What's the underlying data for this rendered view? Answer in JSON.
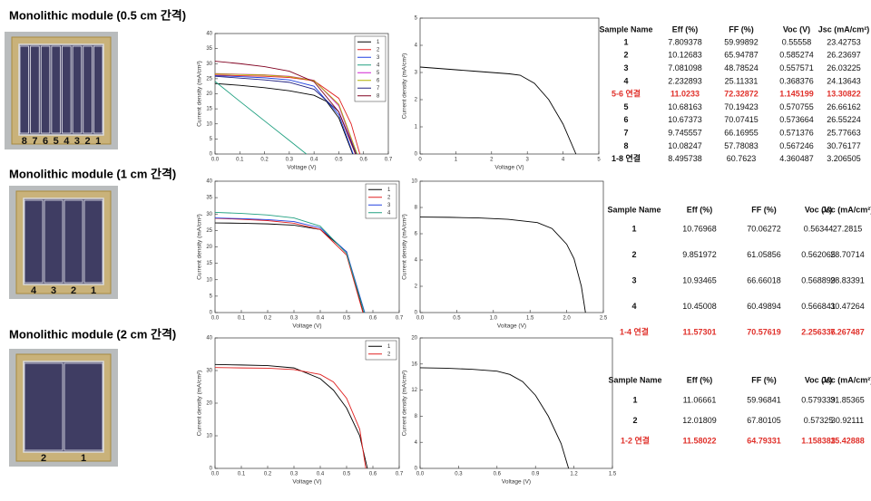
{
  "sections": [
    {
      "title": "Monolithic module (0.5 cm 간격)",
      "photo_labels": [
        "8",
        "7",
        "6",
        "5",
        "4",
        "3",
        "2",
        "1"
      ],
      "table": {
        "header": [
          "Sample Name",
          "Eff (%)",
          "FF (%)",
          "Voc (V)",
          "Jsc (mA/cm²)"
        ],
        "highlight_rows": [
          4
        ],
        "highlight_color": "#e0302a",
        "rows": [
          [
            "1",
            "7.809378",
            "59.99892",
            "0.55558",
            "23.42753"
          ],
          [
            "2",
            "10.12683",
            "65.94787",
            "0.585274",
            "26.23697"
          ],
          [
            "3",
            "7.081098",
            "48.78524",
            "0.557571",
            "26.03225"
          ],
          [
            "4",
            "2.232893",
            "25.11331",
            "0.368376",
            "24.13643"
          ],
          [
            "5-6 연결",
            "11.0233",
            "72.32872",
            "1.145199",
            "13.30822"
          ],
          [
            "5",
            "10.68163",
            "70.19423",
            "0.570755",
            "26.66162"
          ],
          [
            "6",
            "10.67373",
            "70.07415",
            "0.573664",
            "26.55224"
          ],
          [
            "7",
            "9.745557",
            "66.16955",
            "0.571376",
            "25.77663"
          ],
          [
            "8",
            "10.08247",
            "57.78083",
            "0.567246",
            "30.76177"
          ],
          [
            "1-8 연결",
            "8.495738",
            "60.7623",
            "4.360487",
            "3.206505"
          ]
        ]
      }
    },
    {
      "title": "Monolithic module (1 cm 간격)",
      "photo_labels": [
        "4",
        "3",
        "2",
        "1"
      ],
      "table": {
        "header": [
          "Sample Name",
          "Eff (%)",
          "FF (%)",
          "Voc (V)",
          "Jsc (mA/cm²)"
        ],
        "highlight_rows": [
          4
        ],
        "highlight_color": "#e0302a",
        "rows": [
          [
            "1",
            "10.76968",
            "70.06272",
            "0.56344",
            "27.2815"
          ],
          [
            "2",
            "9.851972",
            "61.05856",
            "0.562065",
            "28.70714"
          ],
          [
            "3",
            "10.93465",
            "66.66018",
            "0.568899",
            "28.83391"
          ],
          [
            "4",
            "10.45008",
            "60.49894",
            "0.566841",
            "30.47264"
          ],
          [
            "1-4 연결",
            "11.57301",
            "70.57619",
            "2.256336",
            "7.267487"
          ]
        ]
      }
    },
    {
      "title": "Monolithic module (2 cm 간격)",
      "photo_labels": [
        "2",
        "1"
      ],
      "table": {
        "header": [
          "Sample Name",
          "Eff (%)",
          "FF (%)",
          "Voc (V)",
          "Jsc (mA/cm²)"
        ],
        "highlight_rows": [
          2
        ],
        "highlight_color": "#e0302a",
        "rows": [
          [
            "1",
            "11.06661",
            "59.96841",
            "0.579339",
            "31.85365"
          ],
          [
            "2",
            "12.01809",
            "67.80105",
            "0.57325",
            "30.92111"
          ],
          [
            "1-2 연결",
            "11.58022",
            "64.79331",
            "1.158383",
            "15.42888"
          ]
        ]
      }
    }
  ],
  "chart_data": [
    {
      "type": "line",
      "xlabel": "Voltage (V)",
      "ylabel": "Current density (mA/cm²)",
      "xlim": [
        0,
        0.7
      ],
      "ylim": [
        0,
        40
      ],
      "xticks": [
        {
          "value": 0,
          "label": "0.0"
        },
        0.1,
        0.2,
        0.3,
        0.4,
        0.5,
        0.6,
        0.7
      ],
      "yticks": [
        0,
        5,
        10,
        15,
        20,
        25,
        30,
        35,
        40
      ],
      "legend": "upper right",
      "series": [
        {
          "name": "1",
          "color": "#000000",
          "x": [
            0,
            0.1,
            0.2,
            0.3,
            0.4,
            0.45,
            0.5,
            0.556
          ],
          "values": [
            23.4,
            22.8,
            22.0,
            21.0,
            19.5,
            17.5,
            12,
            0
          ]
        },
        {
          "name": "2",
          "color": "#e02020",
          "x": [
            0,
            0.1,
            0.2,
            0.3,
            0.4,
            0.5,
            0.55,
            0.585
          ],
          "values": [
            26.2,
            26.0,
            25.8,
            25.4,
            24.3,
            18.5,
            10,
            0
          ]
        },
        {
          "name": "3",
          "color": "#2040e0",
          "x": [
            0,
            0.1,
            0.2,
            0.3,
            0.4,
            0.5,
            0.558
          ],
          "values": [
            26.0,
            25.7,
            25.3,
            24.6,
            22.5,
            13,
            0
          ]
        },
        {
          "name": "4",
          "color": "#20a080",
          "x": [
            0,
            0.1,
            0.2,
            0.3,
            0.369
          ],
          "values": [
            24.1,
            17.5,
            11,
            4.5,
            0
          ]
        },
        {
          "name": "5",
          "color": "#d020d0",
          "x": [
            0,
            0.1,
            0.2,
            0.3,
            0.4,
            0.5,
            0.571
          ],
          "values": [
            26.7,
            26.5,
            26.3,
            25.8,
            24.5,
            16,
            0
          ]
        },
        {
          "name": "6",
          "color": "#b0b000",
          "x": [
            0,
            0.1,
            0.2,
            0.3,
            0.4,
            0.5,
            0.574
          ],
          "values": [
            26.6,
            26.4,
            26.2,
            25.7,
            24.4,
            16.5,
            0
          ]
        },
        {
          "name": "7",
          "color": "#202080",
          "x": [
            0,
            0.1,
            0.2,
            0.3,
            0.4,
            0.5,
            0.571
          ],
          "values": [
            25.8,
            25.2,
            24.6,
            23.8,
            21.5,
            14,
            0
          ]
        },
        {
          "name": "8",
          "color": "#800020",
          "x": [
            0,
            0.1,
            0.2,
            0.3,
            0.4,
            0.5,
            0.567
          ],
          "values": [
            30.8,
            30.0,
            29.0,
            27.5,
            24,
            14,
            0
          ]
        }
      ]
    },
    {
      "type": "line",
      "xlabel": "Voltage (V)",
      "ylabel": "Current density (mA/cm²)",
      "xlim": [
        0,
        5
      ],
      "ylim": [
        0,
        5
      ],
      "xticks": [
        0,
        1,
        2,
        3,
        4,
        5
      ],
      "yticks": [
        0,
        1,
        2,
        3,
        4,
        5
      ],
      "series": [
        {
          "color": "#000000",
          "x": [
            0,
            0.5,
            1,
            1.5,
            2,
            2.5,
            2.8,
            3.2,
            3.6,
            4.0,
            4.36
          ],
          "values": [
            3.2,
            3.15,
            3.1,
            3.05,
            3.0,
            2.95,
            2.9,
            2.6,
            2.0,
            1.1,
            0
          ]
        }
      ]
    },
    {
      "type": "line",
      "xlabel": "Voltage (V)",
      "ylabel": "Current density (mA/cm²)",
      "xlim": [
        0,
        0.7
      ],
      "ylim": [
        0,
        40
      ],
      "xticks": [
        {
          "value": 0,
          "label": "0.0"
        },
        0.1,
        0.2,
        0.3,
        0.4,
        0.5,
        0.6,
        0.7
      ],
      "yticks": [
        0,
        5,
        10,
        15,
        20,
        25,
        30,
        35,
        40
      ],
      "legend": "upper right",
      "series": [
        {
          "name": "1",
          "color": "#000000",
          "x": [
            0,
            0.1,
            0.2,
            0.3,
            0.4,
            0.5,
            0.563
          ],
          "values": [
            27.3,
            27.2,
            27.0,
            26.6,
            25.3,
            18.5,
            0
          ]
        },
        {
          "name": "2",
          "color": "#e02020",
          "x": [
            0,
            0.1,
            0.2,
            0.3,
            0.4,
            0.5,
            0.562
          ],
          "values": [
            28.7,
            28.4,
            28.0,
            27.2,
            25.3,
            17.5,
            0
          ]
        },
        {
          "name": "3",
          "color": "#2040e0",
          "x": [
            0,
            0.1,
            0.2,
            0.3,
            0.4,
            0.5,
            0.569
          ],
          "values": [
            28.8,
            28.6,
            28.3,
            27.7,
            25.8,
            18.5,
            0
          ]
        },
        {
          "name": "4",
          "color": "#20a080",
          "x": [
            0,
            0.1,
            0.2,
            0.3,
            0.4,
            0.5,
            0.567
          ],
          "values": [
            30.5,
            30.2,
            29.7,
            28.8,
            26.3,
            18,
            0
          ]
        }
      ]
    },
    {
      "type": "line",
      "xlabel": "Voltage (V)",
      "ylabel": "Current density (mA/cm²)",
      "xlim": [
        0,
        2.5
      ],
      "ylim": [
        0,
        10
      ],
      "xticks": [
        {
          "value": 0,
          "label": "0.0"
        },
        0.5,
        {
          "value": 1,
          "label": "1.0"
        },
        1.5,
        {
          "value": 2,
          "label": "2.0"
        },
        2.5
      ],
      "yticks": [
        0,
        2,
        4,
        6,
        8,
        10
      ],
      "series": [
        {
          "color": "#000000",
          "x": [
            0,
            0.4,
            0.8,
            1.2,
            1.6,
            1.8,
            2.0,
            2.1,
            2.2,
            2.256
          ],
          "values": [
            7.27,
            7.25,
            7.2,
            7.1,
            6.85,
            6.4,
            5.2,
            4.1,
            2.0,
            0
          ]
        }
      ]
    },
    {
      "type": "line",
      "xlabel": "Voltage (V)",
      "ylabel": "Current density (mA/cm²)",
      "xlim": [
        0,
        0.7
      ],
      "ylim": [
        0,
        40
      ],
      "xticks": [
        {
          "value": 0,
          "label": "0.0"
        },
        0.1,
        0.2,
        0.3,
        0.4,
        0.5,
        0.6,
        0.7
      ],
      "yticks": [
        0,
        10,
        20,
        30,
        40
      ],
      "legend": "upper right",
      "series": [
        {
          "name": "1",
          "color": "#000000",
          "x": [
            0,
            0.1,
            0.2,
            0.3,
            0.4,
            0.45,
            0.5,
            0.55,
            0.579
          ],
          "values": [
            31.85,
            31.7,
            31.5,
            30.8,
            27.5,
            24,
            18.5,
            10,
            0
          ]
        },
        {
          "name": "2",
          "color": "#e02020",
          "x": [
            0,
            0.1,
            0.2,
            0.3,
            0.4,
            0.45,
            0.5,
            0.55,
            0.573
          ],
          "values": [
            30.92,
            30.8,
            30.7,
            30.3,
            28.8,
            26.5,
            21.5,
            12,
            0
          ]
        }
      ]
    },
    {
      "type": "line",
      "xlabel": "Voltage (V)",
      "ylabel": "Current density (mA/cm²)",
      "xlim": [
        0,
        1.5
      ],
      "ylim": [
        0,
        20
      ],
      "xticks": [
        {
          "value": 0,
          "label": "0.0"
        },
        0.3,
        0.6,
        0.9,
        1.2,
        1.5
      ],
      "yticks": [
        0,
        4,
        8,
        12,
        16,
        20
      ],
      "series": [
        {
          "color": "#000000",
          "x": [
            0,
            0.2,
            0.4,
            0.6,
            0.7,
            0.8,
            0.9,
            1.0,
            1.1,
            1.158
          ],
          "values": [
            15.43,
            15.35,
            15.2,
            14.9,
            14.4,
            13.3,
            11.2,
            8,
            3.8,
            0
          ]
        }
      ]
    }
  ]
}
